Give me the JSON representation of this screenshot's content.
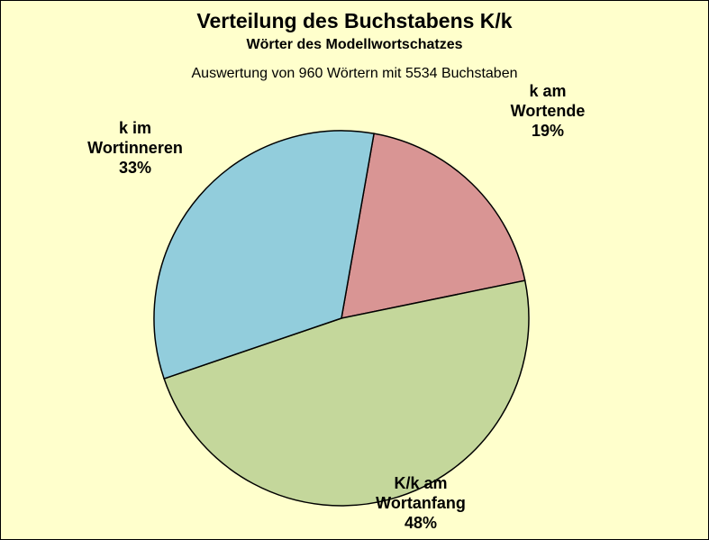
{
  "chart_data": {
    "type": "pie",
    "title": "Verteilung des Buchstabens K/k",
    "subtitle": "Wörter des Modellwortschatzes",
    "note": "Auswertung von 960 Wörtern mit 5534 Buchstaben",
    "slices": [
      {
        "label_lines": [
          "k am",
          "Wortende"
        ],
        "value": 19,
        "value_label": "19%",
        "color": "#d99594"
      },
      {
        "label_lines": [
          "K/k am",
          "Wortanfang"
        ],
        "value": 48,
        "value_label": "48%",
        "color": "#c4d79b"
      },
      {
        "label_lines": [
          "k im",
          "Wortinneren"
        ],
        "value": 33,
        "value_label": "33%",
        "color": "#92cddc"
      }
    ],
    "background": "#ffffcc",
    "legend": "none"
  }
}
